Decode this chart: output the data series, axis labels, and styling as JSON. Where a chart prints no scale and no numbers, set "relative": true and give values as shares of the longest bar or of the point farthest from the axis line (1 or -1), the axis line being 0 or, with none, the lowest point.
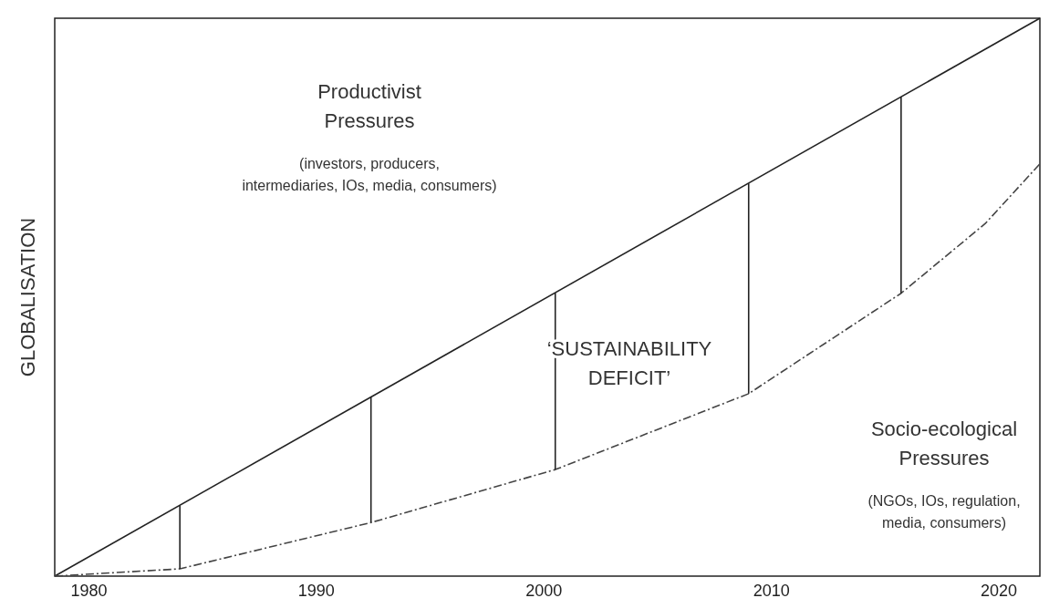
{
  "chart_data": {
    "type": "line",
    "relative": true,
    "ylabel": "GLOBALISATION",
    "xlim": [
      1978.5,
      2021.8
    ],
    "xticks": [
      1980,
      1990,
      2000,
      2010,
      2020
    ],
    "series": [
      {
        "color": "#222222",
        "line_style": "solid",
        "x": [
          1978.5,
          2021.8
        ],
        "values": [
          0,
          1
        ]
      },
      {
        "color": "#444444",
        "line_style": "dashed",
        "x": [
          1978.5,
          1984.0,
          1992.4,
          2000.5,
          2009.0,
          2015.7,
          2019.4,
          2021.8
        ],
        "values": [
          0,
          0.013,
          0.096,
          0.191,
          0.327,
          0.507,
          0.632,
          0.739
        ]
      },
      {
        "color": "#222222",
        "line_style": "solid",
        "x": [
          1984.0,
          1984.0
        ],
        "values": [
          0.013,
          0.127
        ]
      },
      {
        "color": "#222222",
        "line_style": "solid",
        "x": [
          1992.4,
          1992.4
        ],
        "values": [
          0.096,
          0.321
        ]
      },
      {
        "color": "#222222",
        "line_style": "solid",
        "x": [
          2000.5,
          2000.5
        ],
        "values": [
          0.191,
          0.508
        ]
      },
      {
        "color": "#222222",
        "line_style": "solid",
        "x": [
          2009.0,
          2009.0
        ],
        "values": [
          0.327,
          0.704
        ]
      },
      {
        "color": "#222222",
        "line_style": "solid",
        "x": [
          2015.7,
          2015.7
        ],
        "values": [
          0.507,
          0.859
        ]
      }
    ],
    "annotations": [
      "Productivist\nPressures",
      "(investors, producers,\nintermediaries, IOs, media, consumers)",
      "‘SUSTAINABILITY\nDEFICIT’",
      "Socio-ecological\nPressures",
      "(NGOs, IOs, regulation,\nmedia, consumers)"
    ]
  }
}
